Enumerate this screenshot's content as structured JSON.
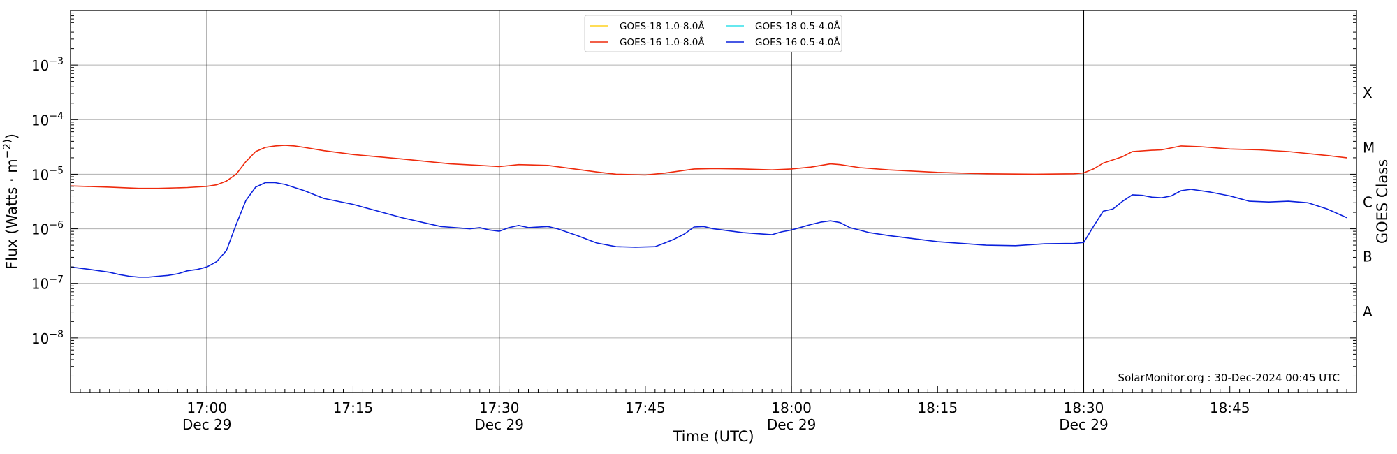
{
  "chart_data": {
    "type": "line",
    "xlabel": "Time (UTC)",
    "ylabel": "Flux (Watts · m^-2)",
    "ylabel_right": "GOES Class",
    "credit": "SolarMonitor.org : 30-Dec-2024 00:45 UTC",
    "y_scale": "log",
    "ylim": [
      1e-09,
      0.01
    ],
    "xlim": [
      "16:46",
      "18:58"
    ],
    "grid": "horizontal at decades",
    "legend_position": "top-center",
    "y_ticks": [
      {
        "exp": -8,
        "label_base": "10",
        "label_exp": "−8"
      },
      {
        "exp": -7,
        "label_base": "10",
        "label_exp": "−7"
      },
      {
        "exp": -6,
        "label_base": "10",
        "label_exp": "−6"
      },
      {
        "exp": -5,
        "label_base": "10",
        "label_exp": "−5"
      },
      {
        "exp": -4,
        "label_base": "10",
        "label_exp": "−4"
      },
      {
        "exp": -3,
        "label_base": "10",
        "label_exp": "−3"
      }
    ],
    "x_ticks": [
      {
        "time": "17:00",
        "label": "17:00",
        "sublabel": "Dec 29"
      },
      {
        "time": "17:15",
        "label": "17:15",
        "sublabel": ""
      },
      {
        "time": "17:30",
        "label": "17:30",
        "sublabel": "Dec 29"
      },
      {
        "time": "17:45",
        "label": "17:45",
        "sublabel": ""
      },
      {
        "time": "18:00",
        "label": "18:00",
        "sublabel": "Dec 29"
      },
      {
        "time": "18:15",
        "label": "18:15",
        "sublabel": ""
      },
      {
        "time": "18:30",
        "label": "18:30",
        "sublabel": "Dec 29"
      },
      {
        "time": "18:45",
        "label": "18:45",
        "sublabel": ""
      }
    ],
    "vertical_lines": [
      "17:00",
      "17:30",
      "18:00",
      "18:30"
    ],
    "goes_classes": [
      {
        "label": "A",
        "flux": 3.16e-08
      },
      {
        "label": "B",
        "flux": 3.16e-07
      },
      {
        "label": "C",
        "flux": 3.16e-06
      },
      {
        "label": "M",
        "flux": 3.16e-05
      },
      {
        "label": "X",
        "flux": 0.000316
      }
    ],
    "series": [
      {
        "name": "GOES-18 1.0-8.0Å",
        "color": "#ffd21f",
        "x": [],
        "values": []
      },
      {
        "name": "GOES-18 0.5-4.0Å",
        "color": "#33e0ea",
        "x": [],
        "values": []
      },
      {
        "name": "GOES-16 1.0-8.0Å",
        "color": "#ee2a0c",
        "x": [
          "16:46",
          "16:50",
          "16:53",
          "16:55",
          "16:58",
          "17:00",
          "17:01",
          "17:02",
          "17:03",
          "17:04",
          "17:05",
          "17:06",
          "17:07",
          "17:08",
          "17:09",
          "17:10",
          "17:12",
          "17:15",
          "17:20",
          "17:25",
          "17:28",
          "17:30",
          "17:32",
          "17:35",
          "17:40",
          "17:42",
          "17:45",
          "17:47",
          "17:50",
          "17:52",
          "17:55",
          "17:58",
          "18:00",
          "18:02",
          "18:04",
          "18:05",
          "18:07",
          "18:10",
          "18:15",
          "18:20",
          "18:25",
          "18:29",
          "18:30",
          "18:31",
          "18:32",
          "18:34",
          "18:35",
          "18:37",
          "18:38",
          "18:40",
          "18:42",
          "18:45",
          "18:48",
          "18:51",
          "18:55",
          "18:57"
        ],
        "values": [
          6.1e-06,
          5.8e-06,
          5.5e-06,
          5.5e-06,
          5.7e-06,
          6e-06,
          6.4e-06,
          7.5e-06,
          1e-05,
          1.7e-05,
          2.6e-05,
          3.1e-05,
          3.3e-05,
          3.4e-05,
          3.3e-05,
          3.1e-05,
          2.7e-05,
          2.3e-05,
          1.9e-05,
          1.55e-05,
          1.45e-05,
          1.38e-05,
          1.5e-05,
          1.45e-05,
          1.1e-05,
          1e-05,
          9.7e-06,
          1.05e-05,
          1.25e-05,
          1.27e-05,
          1.25e-05,
          1.2e-05,
          1.25e-05,
          1.35e-05,
          1.55e-05,
          1.5e-05,
          1.32e-05,
          1.2e-05,
          1.08e-05,
          1.02e-05,
          1e-05,
          1.02e-05,
          1.06e-05,
          1.25e-05,
          1.6e-05,
          2.1e-05,
          2.6e-05,
          2.75e-05,
          2.8e-05,
          3.3e-05,
          3.2e-05,
          2.9e-05,
          2.8e-05,
          2.6e-05,
          2.2e-05,
          2e-05
        ]
      },
      {
        "name": "GOES-16 0.5-4.0Å",
        "color": "#0a20dc",
        "x": [
          "16:46",
          "16:48",
          "16:50",
          "16:51",
          "16:52",
          "16:53",
          "16:54",
          "16:55",
          "16:56",
          "16:57",
          "16:58",
          "16:59",
          "17:00",
          "17:01",
          "17:02",
          "17:03",
          "17:04",
          "17:05",
          "17:06",
          "17:07",
          "17:08",
          "17:10",
          "17:12",
          "17:15",
          "17:18",
          "17:20",
          "17:24",
          "17:27",
          "17:28",
          "17:29",
          "17:30",
          "17:31",
          "17:32",
          "17:33",
          "17:35",
          "17:36",
          "17:38",
          "17:40",
          "17:42",
          "17:44",
          "17:46",
          "17:47",
          "17:48",
          "17:49",
          "17:50",
          "17:51",
          "17:52",
          "17:55",
          "17:57",
          "17:58",
          "17:59",
          "18:00",
          "18:02",
          "18:03",
          "18:04",
          "18:05",
          "18:06",
          "18:08",
          "18:10",
          "18:15",
          "18:20",
          "18:23",
          "18:26",
          "18:29",
          "18:30",
          "18:31",
          "18:32",
          "18:33",
          "18:34",
          "18:35",
          "18:36",
          "18:37",
          "18:38",
          "18:39",
          "18:40",
          "18:41",
          "18:43",
          "18:45",
          "18:47",
          "18:49",
          "18:51",
          "18:53",
          "18:55",
          "18:57"
        ],
        "values": [
          2e-07,
          1.8e-07,
          1.6e-07,
          1.45e-07,
          1.35e-07,
          1.3e-07,
          1.3e-07,
          1.35e-07,
          1.4e-07,
          1.5e-07,
          1.7e-07,
          1.8e-07,
          2e-07,
          2.5e-07,
          4e-07,
          1.2e-06,
          3.3e-06,
          5.8e-06,
          7e-06,
          7e-06,
          6.5e-06,
          5e-06,
          3.6e-06,
          2.8e-06,
          2e-06,
          1.6e-06,
          1.1e-06,
          1e-06,
          1.05e-06,
          9.5e-07,
          9e-07,
          1.05e-06,
          1.15e-06,
          1.05e-06,
          1.1e-06,
          1e-06,
          7.5e-07,
          5.5e-07,
          4.7e-07,
          4.6e-07,
          4.7e-07,
          5.5e-07,
          6.5e-07,
          8e-07,
          1.08e-06,
          1.1e-06,
          1e-06,
          8.5e-07,
          8e-07,
          7.8e-07,
          8.8e-07,
          9.5e-07,
          1.2e-06,
          1.32e-06,
          1.4e-06,
          1.3e-06,
          1.05e-06,
          8.5e-07,
          7.5e-07,
          5.8e-07,
          5e-07,
          4.9e-07,
          5.3e-07,
          5.4e-07,
          5.6e-07,
          1.1e-06,
          2.1e-06,
          2.3e-06,
          3.2e-06,
          4.2e-06,
          4.1e-06,
          3.8e-06,
          3.7e-06,
          4e-06,
          5e-06,
          5.3e-06,
          4.7e-06,
          4e-06,
          3.2e-06,
          3.1e-06,
          3.2e-06,
          3e-06,
          2.3e-06,
          1.6e-06
        ]
      }
    ]
  }
}
